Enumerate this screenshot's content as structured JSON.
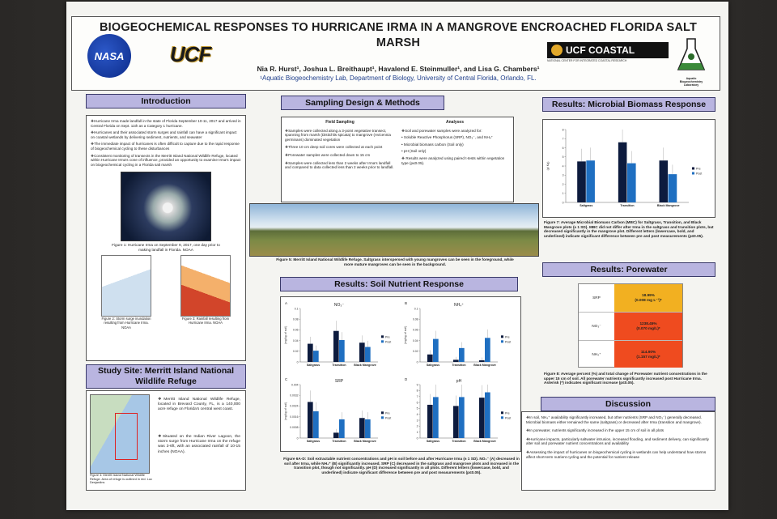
{
  "header": {
    "title": "BIOGEOCHEMICAL RESPONSES TO HURRICANE IRMA IN A MANGROVE ENCROACHED FLORIDA SALT MARSH",
    "authors": "Nia R. Hurst¹, Joshua L. Breithaupt¹, Havalend E. Steinmuller¹, and Lisa G. Chambers¹",
    "affiliation": "¹Aquatic Biogeochemistry Lab, Department of Biology, University of Central Florida, Orlando, FL.",
    "logos": {
      "nasa": "NASA",
      "ucf": "UCF",
      "coastal": "UCF COASTAL",
      "coastal_sub": "NATIONAL CENTER FOR INTEGRATED COASTAL RESEARCH",
      "lab": "Aquatic Biogeochemistry Laboratory"
    }
  },
  "intro": {
    "heading": "Introduction",
    "p1": "❖Hurricane Irma made landfall in the state of Florida September 10-11, 2017 and arrived in Central Florida on Sept. 11th as a Category 1 hurricane.",
    "p2": "❖Hurricanes and their associated storm surges and rainfall can have a significant impact on coastal wetlands by delivering sediment, nutrients, and seawater",
    "p3": "❖The immediate impact of hurricanes is often difficult to capture due to the rapid response of biogeochemical cycling to these disturbances",
    "p4": "❖Consistent monitoring of transects in the Merritt Island National Wildlife Refuge, located within Hurricane Irma's cone of influence, provided an opportunity to examine Irma's impact on biogeochemical cycling in a Florida salt marsh",
    "fig1_caption": "Figure 1: Hurricane Irma on September 9, 2017, one day prior to making landfall in Florida. NOAA",
    "fig2_caption": "Figure 2: Storm surge inundation resulting from Hurricane Irma. NOAA",
    "fig3_caption": "Figure 3: Rainfall resulting from Hurricane Irma. NOAA"
  },
  "study_site": {
    "heading": "Study Site: Merritt Island National Wildlife Refuge",
    "b1": "❖Merritt Island National Wildlife Refuge, located in Brevard County, FL, is a 140,000 acre refuge on Florida's central west coast.",
    "b2": "❖Situated on the Indian River Lagoon, the storm surge from Hurricane Irma on the refuge was 3-6ft, with an associated rainfall of 10-15 inches (NOAA).",
    "map_caption": "Figure 4: Merritt Island National Wildlife Refuge. Area of refuge is outlined in red. Luc Desjardins"
  },
  "methods": {
    "heading": "Sampling Design & Methods",
    "field_heading": "Field Sampling",
    "field": [
      "❖Samples were collected along a 3-point vegetative transect, spanning from marsh (Distichlis spicata) to mangrove (Avicennia germinans) dominated vegetation",
      "❖Three 10 cm deep soil cores were collected at each point",
      "❖Porewater samples were collected down to 15 cm",
      "❖Samples were collected less than 2 weeks after Irma's landfall and compared to data collected less than 2 weeks prior to landfall."
    ],
    "analyses_heading": "Analyses",
    "analyses": [
      "❖Soil and porewater samples were analyzed for:",
      "• Soluble Reactive Phosphorus (SRP), NO₃⁻, and NH₄⁺",
      "• Microbial biomass carbon (Soil only)",
      "• pH (Soil only)",
      "❖ Results were analyzed using paired t-tests within vegetation type (p≤0.05)."
    ],
    "fig5_caption": "Figure 5: Merritt Island National Wildlife Refuge. Saltgrass interspersed with young mangroves can be seen in the foreground, while more mature mangroves can be seen in the background."
  },
  "soil": {
    "heading": "Results: Soil Nutrient Response",
    "caption": "Figure 6A-D: Soil extractable nutrient concentrations and pH in soil before and after Hurricane Irma (± 1 SD). NO₃⁻ (A) decreased in soil after Irma, while NH₄⁺ (B) significantly increased. SRP (C) decreased in the saltgrass and mangrove plots and increased in the transition plot, though not significantly. pH (D) increased significantly in all plots. Different letters (lowercase, bold, and underlined) indicate significant difference between pre and post measurements (p≤0.05)."
  },
  "microbial": {
    "heading": "Results: Microbial Biomass Response",
    "caption": "Figure 7: Average Microbial Biomass Carbon (MBC) for Saltgrass, Transition, and Black Mangrove plots (± 1 SD). MBC did not differ after Irma in the saltgrass and transition plots, but decreased significantly in the mangrove plot. Different letters (lowercase, bold, and underlined) indicate significant difference between pre and post measurements (p≤0.05)."
  },
  "porewater": {
    "heading": "Results: Porewater",
    "rows": [
      {
        "label": "SRP",
        "value": "18.99%",
        "sub": "(0.008 mg L⁻¹)*",
        "color": "#f2b021"
      },
      {
        "label": "NO₃⁻",
        "value": "1238.45%",
        "sub": "(0.070 mg/L)*",
        "color": "#ef4b1f"
      },
      {
        "label": "NH₄⁺",
        "value": "114.90%",
        "sub": "(1.157 mg/L)*",
        "color": "#ef4b1f"
      }
    ],
    "caption": "Figure 8: Average percent (%) and total change of Porewater nutrient concentrations in the upper 15 cm of soil. All porewater nutrients significantly increased post Hurricane Irma. Asterisk (*) indicates significant increase (p≤0.05)."
  },
  "discussion": {
    "heading": "Discussion",
    "items": [
      "❖In soil, NH₄⁺ availability significantly increased, but other nutrients (SRP and NO₃⁻) generally decreased. Microbial biomass either remained the same (saltgrass) or decreased after Irma (transition and mangrove).",
      "❖In porewater, nutrients significantly increased in the upper 15 cm of soil in all plots",
      "❖Hurricane impacts, particularly saltwater intrusion, increased flooding, and sediment delivery, can significantly alter soil and porewater nutrient concentrations and availability",
      "❖Assessing the impact of hurricanes on biogeochemical cycling in wetlands can help understand how storms affect short-term nutrient cycling and the potential for nutrient release"
    ]
  },
  "chart_data": [
    {
      "id": "A",
      "type": "bar",
      "title": "NO₃⁻",
      "ylabel": "(mg/kg of soil)",
      "categories": [
        "Saltgrass",
        "Transition",
        "Black Mangrove"
      ],
      "ylim": [
        0,
        0.1
      ],
      "series": [
        {
          "name": "Pre",
          "values": [
            0.034,
            0.058,
            0.036
          ],
          "color": "#0d1b3e"
        },
        {
          "name": "Post",
          "values": [
            0.021,
            0.041,
            0.028
          ],
          "color": "#1f6fc1"
        }
      ]
    },
    {
      "id": "B",
      "type": "bar",
      "title": "NH₄⁺",
      "ylabel": "(mg/kg of soil)",
      "categories": [
        "Saltgrass",
        "Transition",
        "Black Mangrove"
      ],
      "ylim": [
        0,
        0.1
      ],
      "series": [
        {
          "name": "Pre",
          "values": [
            0.014,
            0.004,
            0.003
          ],
          "color": "#0d1b3e"
        },
        {
          "name": "Post",
          "values": [
            0.043,
            0.026,
            0.045
          ],
          "color": "#1f6fc1"
        }
      ]
    },
    {
      "id": "C",
      "type": "bar",
      "title": "SRP",
      "ylabel": "(mg/kg of soil)",
      "categories": [
        "Saltgrass",
        "Transition",
        "Black Mangrove"
      ],
      "ylim": [
        0,
        0.004
      ],
      "series": [
        {
          "name": "Pre",
          "values": [
            0.0027,
            0.0004,
            0.0015
          ],
          "color": "#0d1b3e"
        },
        {
          "name": "Post",
          "values": [
            0.002,
            0.0014,
            0.0014
          ],
          "color": "#1f6fc1"
        }
      ]
    },
    {
      "id": "D",
      "type": "bar",
      "title": "pH",
      "ylabel": "",
      "categories": [
        "Saltgrass",
        "Transition",
        "Black Mangrove"
      ],
      "ylim": [
        0,
        9
      ],
      "series": [
        {
          "name": "Pre",
          "values": [
            5.6,
            5.4,
            6.8
          ],
          "color": "#0d1b3e"
        },
        {
          "name": "Post",
          "values": [
            6.9,
            6.9,
            7.7
          ],
          "color": "#1f6fc1"
        }
      ]
    },
    {
      "id": "MBC",
      "type": "bar",
      "title": "",
      "ylabel": "(g/ Kg)",
      "categories": [
        "Saltgrass",
        "Transition",
        "Black Mangrove"
      ],
      "ylim": [
        0,
        8
      ],
      "series": [
        {
          "name": "Pre",
          "values": [
            4.5,
            6.6,
            4.6
          ],
          "color": "#0d1b3e"
        },
        {
          "name": "Post",
          "values": [
            4.6,
            4.3,
            3.1
          ],
          "color": "#1f6fc1"
        }
      ]
    }
  ]
}
